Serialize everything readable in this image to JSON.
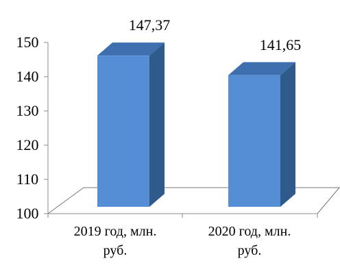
{
  "chart_data": {
    "type": "bar",
    "style": "3d-column",
    "categories": [
      [
        "2019 год, млн.",
        "руб."
      ],
      [
        "2020 год, млн.",
        "руб."
      ]
    ],
    "values": [
      147.37,
      141.65
    ],
    "data_labels": [
      "147,37",
      "141,65"
    ],
    "ylim": [
      100,
      150
    ],
    "yticks": [
      "100",
      "110",
      "120",
      "130",
      "140",
      "150"
    ],
    "grid": false,
    "legend": "none",
    "colors": {
      "bar_front": "#558ed5",
      "bar_side": "#2f5a8c",
      "bar_top": "#3f6fae"
    }
  }
}
